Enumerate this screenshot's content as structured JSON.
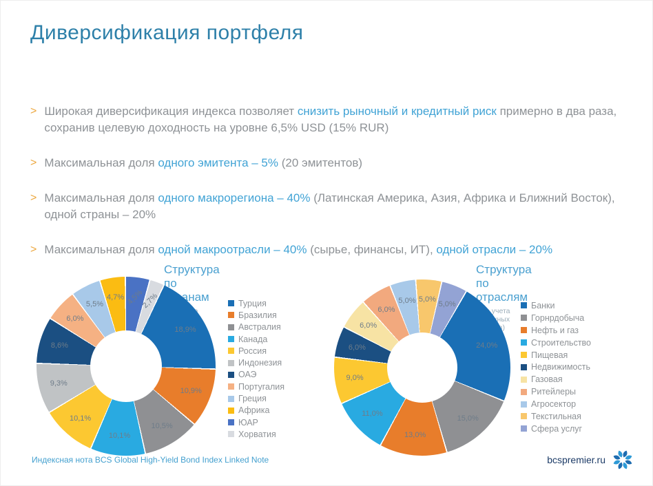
{
  "slide": {
    "title": "Диверсификация портфеля",
    "bullet_marker": ">",
    "bullets": [
      {
        "segments": [
          {
            "text": "Широкая диверсификация индекса позволяет ",
            "hl": false
          },
          {
            "text": "снизить рыночный и кредитный риск",
            "hl": true
          },
          {
            "text": " примерно в два раза, сохранив целевую доходность на уровне 6,5% USD (15% RUR)",
            "hl": false
          }
        ]
      },
      {
        "segments": [
          {
            "text": "Максимальная доля ",
            "hl": false
          },
          {
            "text": "одного эмитента – 5%",
            "hl": true
          },
          {
            "text": " (20 эмитентов)",
            "hl": false
          }
        ]
      },
      {
        "segments": [
          {
            "text": "Максимальная доля ",
            "hl": false
          },
          {
            "text": "одного макрорегиона – 40%",
            "hl": true
          },
          {
            "text": " (Латинская Америка, Азия, Африка и Ближний Восток), одной страны – 20%",
            "hl": false
          }
        ]
      },
      {
        "segments": [
          {
            "text": "Максимальная доля ",
            "hl": false
          },
          {
            "text": "одной макроотрасли – 40%",
            "hl": true
          },
          {
            "text": " (сырье, финансы, ИТ), ",
            "hl": false
          },
          {
            "text": "одной отрасли – 20%",
            "hl": true
          }
        ]
      }
    ],
    "footer": {
      "note": "Индексная нота BCS Global High-Yield Bond Index Linked Note",
      "brand": "bcspremier.ru"
    },
    "accent_colors": {
      "title_blue": "#2e80a9",
      "highlight_blue": "#41a3d5",
      "body_gray": "#8e9296",
      "bullet_orange": "#eca73f",
      "footer_blue": "#44a0cf",
      "brand_navy": "#1b3a66"
    }
  },
  "chart_data": [
    {
      "type": "pie",
      "donut": true,
      "title": "Структура по странам",
      "subtitle": "(без учета денежных средств)",
      "legend_position": "right",
      "start_angle": 25,
      "labels": [
        "Турция",
        "Бразилия",
        "Австралия",
        "Канада",
        "Россия",
        "Индонезия",
        "ОАЭ",
        "Португалия",
        "Греция",
        "Африка",
        "ЮАР",
        "Хорватия"
      ],
      "values": [
        18.9,
        10.9,
        10.5,
        10.1,
        10.1,
        9.3,
        8.6,
        6.0,
        5.5,
        4.7,
        4.5,
        2.7
      ],
      "value_labels": [
        "18,9%",
        "10,9%",
        "10,5%",
        "10,1%",
        "10,1%",
        "9,3%",
        "8,6%",
        "6,0%",
        "5,5%",
        "4,7%",
        "4,5%",
        "2,7%"
      ],
      "colors": [
        "#1a6fb5",
        "#e87d2b",
        "#8f9093",
        "#29aae1",
        "#fcc831",
        "#c0c3c5",
        "#1b4f82",
        "#f5b183",
        "#a8c9e9",
        "#fbbc12",
        "#4a72c4",
        "#d8dbe0"
      ]
    },
    {
      "type": "pie",
      "donut": true,
      "title": "Структура по отраслям",
      "subtitle": "(без учета денежных средств)",
      "legend_position": "right",
      "start_angle": 30,
      "labels": [
        "Банки",
        "Горнрдобыча",
        "Нефть и газ",
        "Строительство",
        "Пищевая",
        "Недвижимость",
        "Газовая",
        "Ритейлеры",
        "Агросектор",
        "Текстильная",
        "Сфера услуг"
      ],
      "values": [
        24.0,
        15.0,
        13.0,
        11.0,
        9.0,
        6.0,
        6.0,
        6.0,
        5.0,
        5.0,
        5.0
      ],
      "value_labels": [
        "24,0%",
        "15,0%",
        "13,0%",
        "11,0%",
        "9,0%",
        "6,0%",
        "6,0%",
        "6,0%",
        "5,0%",
        "5,0%",
        "5,0%"
      ],
      "colors": [
        "#1a6fb5",
        "#8f9093",
        "#e87d2b",
        "#29aae1",
        "#fcc831",
        "#1b4f82",
        "#f7e3a4",
        "#f2a97e",
        "#a8c9e9",
        "#f8c76c",
        "#93a3d4"
      ]
    }
  ]
}
